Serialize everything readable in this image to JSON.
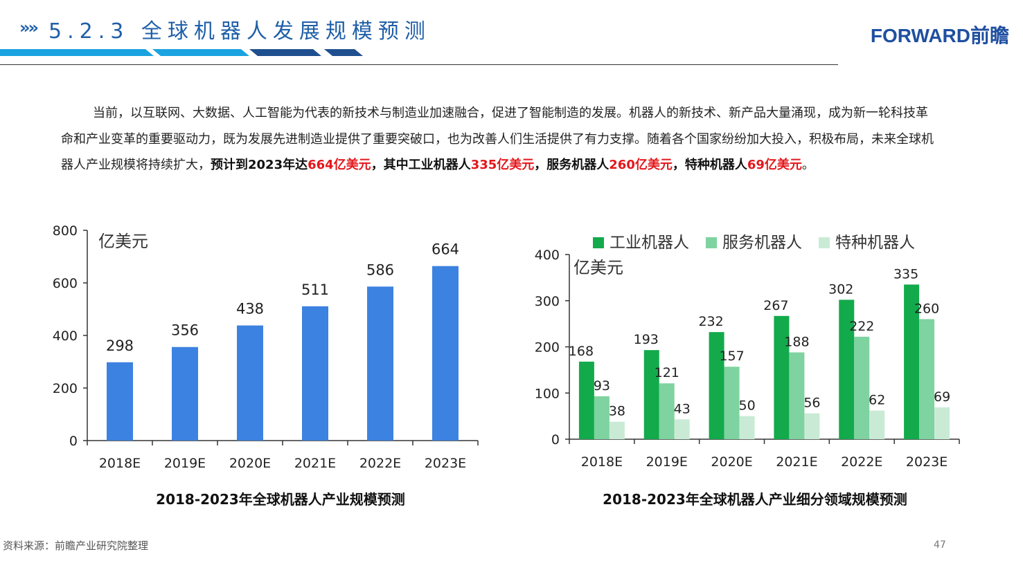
{
  "header": {
    "arrows": "»»",
    "title": "5.2.3 全球机器人发展规模预测",
    "logo": "FORWARD前瞻",
    "stripe_colors": [
      "#1aa3e0",
      "#1aa3e0",
      "#1f4f8f",
      "#1f4f8f"
    ]
  },
  "paragraph": {
    "p1": "当前，以互联网、大数据、人工智能为代表的新技术与制造业加速融合，促进了智能制造的发展。机器人的新技术、新产品大量涌现，成为新一轮科技革命和产业变革的重要驱动力，既为发展先进制造业提供了重要突破口，也为改善人们生活提供了有力支撑。随着各个国家纷纷加大投入，积极布局，未来全球机器人产业规模将持续扩大，",
    "b1": "预计到2023年达",
    "r1": "664亿美元",
    "b2": "，其中工业机器人",
    "r2": "335亿美元",
    "b3": "，服务机器人",
    "r3": "260亿美元",
    "b4": "，特种机器人",
    "r4": "69亿美元",
    "end": "。"
  },
  "chart_data": [
    {
      "type": "bar",
      "title": "2018-2023年全球机器人产业规模预测",
      "unit_label": "亿美元",
      "categories": [
        "2018E",
        "2019E",
        "2020E",
        "2021E",
        "2022E",
        "2023E"
      ],
      "values": [
        298,
        356,
        438,
        511,
        586,
        664
      ],
      "ylim": [
        0,
        800
      ],
      "yticks": [
        0,
        200,
        400,
        600,
        800
      ],
      "color": "#3c82e0",
      "grid": false
    },
    {
      "type": "bar",
      "title": "2018-2023年全球机器人产业细分领域规模预测",
      "unit_label": "亿美元",
      "categories": [
        "2018E",
        "2019E",
        "2020E",
        "2021E",
        "2022E",
        "2023E"
      ],
      "series": [
        {
          "name": "工业机器人",
          "values": [
            168,
            193,
            232,
            267,
            302,
            335
          ],
          "color": "#13aa4c"
        },
        {
          "name": "服务机器人",
          "values": [
            93,
            121,
            157,
            188,
            222,
            260
          ],
          "color": "#7fd3a0"
        },
        {
          "name": "特种机器人",
          "values": [
            38,
            43,
            50,
            56,
            62,
            69
          ],
          "color": "#c9ebd6"
        }
      ],
      "ylim": [
        0,
        400
      ],
      "yticks": [
        0,
        100,
        200,
        300,
        400
      ],
      "legend": "top",
      "grid": false
    }
  ],
  "footer": {
    "source": "资料来源：前瞻产业研究院整理",
    "page": "47"
  }
}
